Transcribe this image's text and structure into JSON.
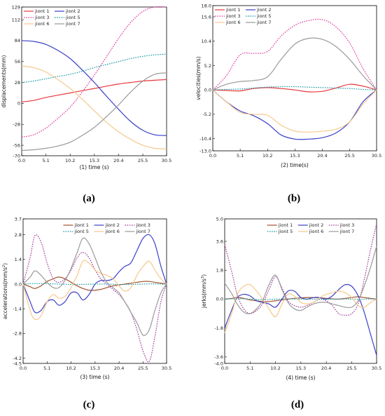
{
  "colors": {
    "jiont1": "#e8383d",
    "jiont2": "#3a3fc7",
    "jiont3": "#e0389a",
    "jiont5": "#1a9aa8",
    "jiont6": "#f5c98c",
    "jiont7": "#9a9a9a",
    "acc1": "#a0522d",
    "acc3": "#a23b9a"
  },
  "chart_data": [
    {
      "type": "line",
      "panel_label": "(a)",
      "xlabel": "(1) time (s)",
      "ylabel": "displacements(mm)",
      "xlim": [
        0,
        30.5
      ],
      "ylim": [
        -70,
        129
      ],
      "xticks": [
        "0.0",
        "5.1",
        "10.2",
        "15.3",
        "20.4",
        "25.5",
        "30.5"
      ],
      "yticks": [
        "-70",
        "-56",
        "-28",
        "0",
        "28",
        "56",
        "84",
        "112",
        "129"
      ],
      "x": [
        0,
        2.5,
        5.1,
        7.6,
        10.2,
        12.7,
        15.3,
        17.8,
        20.4,
        22.9,
        25.5,
        28.0,
        30.5
      ],
      "series": [
        {
          "name": "jiont 1",
          "key": "jiont1",
          "dash": "solid",
          "values": [
            2,
            4,
            8,
            11,
            14,
            17,
            20,
            23,
            26,
            28,
            30,
            31,
            32
          ]
        },
        {
          "name": "jiont 2",
          "key": "jiont2",
          "dash": "solid",
          "values": [
            84,
            83,
            79,
            71,
            60,
            45,
            28,
            10,
            -8,
            -24,
            -36,
            -42,
            -43
          ]
        },
        {
          "name": "jiont 3",
          "key": "jiont3",
          "dash": "dot",
          "values": [
            -45,
            -42,
            -33,
            -20,
            -5,
            15,
            38,
            62,
            87,
            108,
            123,
            129,
            129
          ]
        },
        {
          "name": "jiont 5",
          "key": "jiont5",
          "dash": "dot",
          "values": [
            28,
            30,
            33,
            36,
            39,
            43,
            48,
            52,
            56,
            60,
            63,
            65,
            66
          ]
        },
        {
          "name": "jiont 6",
          "key": "jiont6",
          "dash": "solid",
          "values": [
            50,
            48,
            42,
            32,
            20,
            6,
            -10,
            -25,
            -38,
            -48,
            -56,
            -60,
            -61
          ]
        },
        {
          "name": "jiont 7",
          "key": "jiont7",
          "dash": "solid",
          "values": [
            -63,
            -62,
            -60,
            -57,
            -52,
            -43,
            -32,
            -18,
            -2,
            15,
            30,
            39,
            41
          ]
        }
      ],
      "legend_cols": 2,
      "legend": "top-left"
    },
    {
      "type": "line",
      "panel_label": "(b)",
      "xlabel": "(2) time(s)",
      "ylabel": "velocities(mm/s)",
      "xlim": [
        0,
        30.5
      ],
      "ylim": [
        -13,
        18
      ],
      "xticks": [
        "0.0",
        "5.1",
        "10.2",
        "15.3",
        "20.4",
        "25.5",
        "30.5"
      ],
      "yticks": [
        "-13.0",
        "-10.4",
        "-5.2",
        "0.0",
        "5.2",
        "10.4",
        "15.6",
        "18.0"
      ],
      "x": [
        0,
        2.5,
        5.1,
        7.6,
        10.2,
        12.7,
        15.3,
        17.8,
        20.4,
        22.9,
        25.5,
        28.0,
        30.5
      ],
      "series": [
        {
          "name": "jiont 1",
          "key": "jiont1",
          "dash": "solid",
          "values": [
            0,
            -0.1,
            -0.2,
            0.3,
            0.5,
            0.3,
            0,
            -0.4,
            -0.3,
            0.4,
            1.2,
            0.8,
            0
          ]
        },
        {
          "name": "jiont 2",
          "key": "jiont2",
          "dash": "solid",
          "values": [
            0,
            -2.5,
            -4.5,
            -5.5,
            -7.2,
            -9.6,
            -10.5,
            -10.5,
            -10.2,
            -9.2,
            -6.8,
            -2.5,
            0
          ]
        },
        {
          "name": "jiont 3",
          "key": "jiont3",
          "dash": "dot",
          "values": [
            0,
            3,
            7.5,
            7.8,
            8.2,
            11.5,
            13.8,
            14.8,
            15,
            13.5,
            10,
            4.5,
            0
          ]
        },
        {
          "name": "jiont 5",
          "key": "jiont5",
          "dash": "dot",
          "values": [
            0,
            0.1,
            0.2,
            0.4,
            0.6,
            0.7,
            0.7,
            0.6,
            0.5,
            0.4,
            0.3,
            0.1,
            0
          ]
        },
        {
          "name": "jiont 6",
          "key": "jiont6",
          "dash": "solid",
          "values": [
            0,
            -2.5,
            -4.8,
            -5.2,
            -5.4,
            -7.5,
            -8.8,
            -9.0,
            -8.8,
            -8.4,
            -6.8,
            -3,
            0
          ]
        },
        {
          "name": "jiont 7",
          "key": "jiont7",
          "dash": "solid",
          "values": [
            0,
            1.2,
            1.8,
            2.0,
            2.8,
            6.5,
            9.8,
            11.0,
            10.8,
            9.3,
            6.5,
            3,
            0
          ]
        }
      ],
      "legend_cols": 2,
      "legend": "top-left"
    },
    {
      "type": "line",
      "panel_label": "(c)",
      "xlabel": "(3) time (s)",
      "ylabel": "accelerations(mm/s",
      "ylabel_sup": "2",
      "ylabel_end": ")",
      "xlim": [
        0,
        30.5
      ],
      "ylim": [
        -4.5,
        3.7
      ],
      "xticks": [
        "0.0",
        "5.1",
        "10.2",
        "15.3",
        "20.4",
        "25.5",
        "30.5"
      ],
      "yticks": [
        "-4.5",
        "-4.2",
        "-2.8",
        "-1.4",
        "0.0",
        "1.4",
        "2.8",
        "3.7"
      ],
      "x": [
        0,
        1.5,
        2.5,
        3.8,
        5.1,
        6.4,
        7.6,
        8.9,
        10.2,
        11.5,
        12.7,
        14.0,
        15.3,
        16.5,
        17.8,
        19.1,
        20.4,
        21.6,
        22.9,
        24.2,
        25.5,
        26.8,
        28.0,
        29.3,
        30.5
      ],
      "series": [
        {
          "name": "jiont 1",
          "key": "acc1",
          "dash": "solid",
          "values": [
            0,
            -0.15,
            -0.25,
            -0.1,
            0.15,
            0.3,
            0.4,
            0.3,
            0.1,
            -0.1,
            -0.25,
            -0.35,
            -0.35,
            -0.3,
            -0.2,
            -0.1,
            -0.05,
            0,
            0.05,
            0.1,
            0.15,
            0.15,
            0.1,
            0.05,
            0
          ]
        },
        {
          "name": "jiont 2",
          "key": "jiont2",
          "dash": "solid",
          "values": [
            0,
            -1.0,
            -1.6,
            -1.5,
            -1.0,
            -0.9,
            -1.2,
            -1.0,
            -0.5,
            -0.5,
            -0.9,
            -0.6,
            0,
            0.2,
            0.2,
            0.3,
            0.7,
            1.0,
            1.2,
            1.9,
            2.6,
            2.8,
            2.3,
            1.0,
            0
          ]
        },
        {
          "name": "jiont 3",
          "key": "acc3",
          "dash": "dot",
          "values": [
            0,
            1.5,
            2.75,
            2.4,
            1.2,
            0.3,
            0.1,
            0.3,
            0.8,
            1.5,
            1.8,
            1.5,
            0.8,
            0.3,
            0,
            -0.3,
            -0.6,
            -1.0,
            -1.6,
            -2.6,
            -3.8,
            -4.4,
            -3.0,
            -1.0,
            0
          ]
        },
        {
          "name": "jiont 5",
          "key": "jiont5",
          "dash": "dot",
          "values": [
            0,
            0.02,
            0.03,
            0.03,
            0.02,
            0.01,
            0,
            -0.01,
            -0.02,
            -0.02,
            -0.02,
            -0.01,
            0,
            0,
            0,
            -0.01,
            -0.02,
            -0.02,
            -0.02,
            -0.01,
            0,
            0.01,
            0.01,
            0,
            0
          ]
        },
        {
          "name": "jiont 6",
          "key": "jiont6",
          "dash": "solid",
          "values": [
            0,
            -1.5,
            -2.0,
            -1.8,
            -1.0,
            -0.6,
            -0.8,
            -0.7,
            -0.2,
            0.5,
            1.3,
            1.2,
            0.8,
            0.6,
            0.5,
            0.3,
            -0.1,
            -0.4,
            -0.2,
            0.5,
            1.0,
            1.3,
            0.8,
            0.3,
            0
          ]
        },
        {
          "name": "jiont 7",
          "key": "jiont7",
          "dash": "solid",
          "values": [
            0,
            0.4,
            0.75,
            0.5,
            0.1,
            -0.2,
            -0.2,
            0.2,
            0.9,
            1.8,
            2.6,
            2.3,
            1.5,
            0.7,
            0.1,
            -0.2,
            -0.5,
            -1.0,
            -1.6,
            -2.2,
            -2.9,
            -2.6,
            -1.5,
            -0.5,
            0
          ]
        }
      ],
      "legend_cols": 3,
      "legend": "top-center"
    },
    {
      "type": "line",
      "panel_label": "(d)",
      "xlabel": "(4) time (s)",
      "ylabel": "jerks(mm/s",
      "ylabel_sup": "3",
      "ylabel_end": ")",
      "xlim": [
        0,
        30.5
      ],
      "ylim": [
        -4.0,
        5.0
      ],
      "xticks": [
        "0.0",
        "5.1",
        "10.2",
        "15.3",
        "20.4",
        "25.5",
        "30.5"
      ],
      "yticks": [
        "-4.0",
        "-3.6",
        "-1.8",
        "0.0",
        "1.8",
        "3.6",
        "5.0"
      ],
      "x": [
        0,
        1.5,
        2.5,
        3.8,
        5.1,
        6.4,
        7.6,
        8.9,
        10.2,
        11.5,
        12.7,
        14.0,
        15.3,
        16.5,
        17.8,
        19.1,
        20.4,
        21.6,
        22.9,
        24.2,
        25.5,
        26.8,
        28.0,
        29.3,
        30.5
      ],
      "series": [
        {
          "name": "jiont 1",
          "key": "acc1",
          "dash": "solid",
          "values": [
            0,
            0.05,
            0.1,
            0.05,
            -0.05,
            -0.1,
            -0.15,
            -0.15,
            -0.1,
            -0.05,
            0,
            0.05,
            0.08,
            0.1,
            0.1,
            0.08,
            0.05,
            0.02,
            0,
            0.05,
            0.1,
            0.15,
            0.1,
            0.05,
            0
          ]
        },
        {
          "name": "jiont 2",
          "key": "jiont2",
          "dash": "solid",
          "values": [
            -1.8,
            -0.6,
            0.1,
            0.3,
            0.2,
            -0.1,
            -0.2,
            -0.3,
            -0.5,
            0.0,
            0.5,
            0.5,
            0.1,
            0.0,
            0.1,
            0.1,
            0.0,
            0.2,
            0.6,
            0.9,
            0.8,
            0.2,
            -0.8,
            -2.2,
            -3.5
          ]
        },
        {
          "name": "jiont 3",
          "key": "acc3",
          "dash": "dot",
          "values": [
            3.4,
            1.6,
            0.3,
            -0.6,
            -0.9,
            -0.7,
            -0.3,
            0.6,
            1.4,
            0.7,
            -0.1,
            -0.4,
            -0.5,
            -0.4,
            -0.2,
            0.0,
            -0.1,
            -0.4,
            -0.9,
            -1.0,
            -0.9,
            -0.3,
            1.2,
            3.1,
            4.7
          ]
        },
        {
          "name": "jiont 5",
          "key": "jiont5",
          "dash": "dot",
          "values": [
            0,
            0.02,
            0.03,
            0.02,
            0,
            -0.02,
            -0.03,
            -0.02,
            0,
            0.01,
            0.02,
            0.01,
            0,
            0,
            0,
            -0.01,
            -0.01,
            0,
            0.01,
            0.01,
            0,
            -0.01,
            0,
            0.01,
            0
          ]
        },
        {
          "name": "jiont 6",
          "key": "jiont6",
          "dash": "solid",
          "values": [
            -2.1,
            -0.8,
            0.3,
            0.8,
            0.9,
            0.5,
            0.0,
            -0.6,
            -1.1,
            -0.3,
            0.3,
            0.2,
            -0.2,
            -0.3,
            -0.2,
            0.1,
            0.3,
            0.4,
            0.5,
            0.4,
            0.1,
            -0.4,
            -0.5,
            -0.2,
            0
          ]
        },
        {
          "name": "jiont 7",
          "key": "jiont7",
          "dash": "solid",
          "values": [
            1.0,
            0.3,
            -0.3,
            -0.8,
            -0.9,
            -0.6,
            -0.1,
            0.9,
            1.5,
            0.6,
            -0.2,
            -0.6,
            -0.7,
            -0.5,
            -0.3,
            -0.2,
            -0.2,
            -0.3,
            -0.4,
            -0.5,
            -0.5,
            -0.1,
            0.8,
            2.0,
            3.3
          ]
        }
      ],
      "legend_cols": 3,
      "legend": "top-center"
    }
  ]
}
